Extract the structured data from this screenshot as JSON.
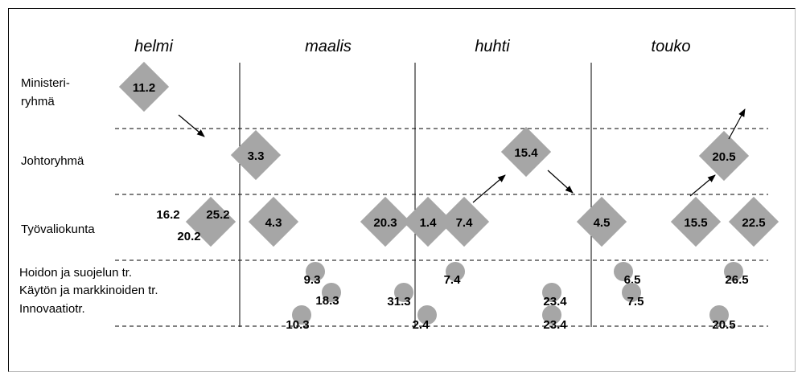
{
  "colors": {
    "shape_fill": "#a6a6a6",
    "line": "#000000",
    "text": "#000000",
    "frame_shadow": "#bbbbbb"
  },
  "months": [
    "helmi",
    "maalis",
    "huhti",
    "touko"
  ],
  "rows": {
    "ministeri_line1": "Ministeri-",
    "ministeri_line2": "ryhmä",
    "johtoryhma": "Johtoryhmä",
    "tyovaliokunta": "Työvaliokunta",
    "hoito": "Hoidon ja suojelun tr.",
    "kaytto": "Käytön ja markkinoiden tr.",
    "innovaatio": "Innovaatiotr."
  },
  "diamonds": [
    {
      "label": "11.2",
      "group": "ministeri"
    },
    {
      "label": "3.3",
      "group": "johto"
    },
    {
      "label": "15.4",
      "group": "johto"
    },
    {
      "label": "20.5",
      "group": "johto"
    },
    {
      "label": "4.3",
      "group": "tyo"
    },
    {
      "label": "20.3",
      "group": "tyo"
    },
    {
      "label": "1.4",
      "group": "tyo"
    },
    {
      "label": "7.4",
      "group": "tyo"
    },
    {
      "label": "4.5",
      "group": "tyo"
    },
    {
      "label": "15.5",
      "group": "tyo"
    },
    {
      "label": "22.5",
      "group": "tyo"
    },
    {
      "label": "",
      "group": "tyo"
    }
  ],
  "tyo_helmi_labels": [
    "16.2",
    "25.2",
    "20.2"
  ],
  "circles": [
    {
      "label": "9.3"
    },
    {
      "label": "18.3"
    },
    {
      "label": "10.3"
    },
    {
      "label": "31.3"
    },
    {
      "label": "2.4"
    },
    {
      "label": "7.4"
    },
    {
      "label": "23.4"
    },
    {
      "label": "23.4"
    },
    {
      "label": "6.5"
    },
    {
      "label": "7.5"
    },
    {
      "label": "26.5"
    },
    {
      "label": "20.5"
    }
  ]
}
